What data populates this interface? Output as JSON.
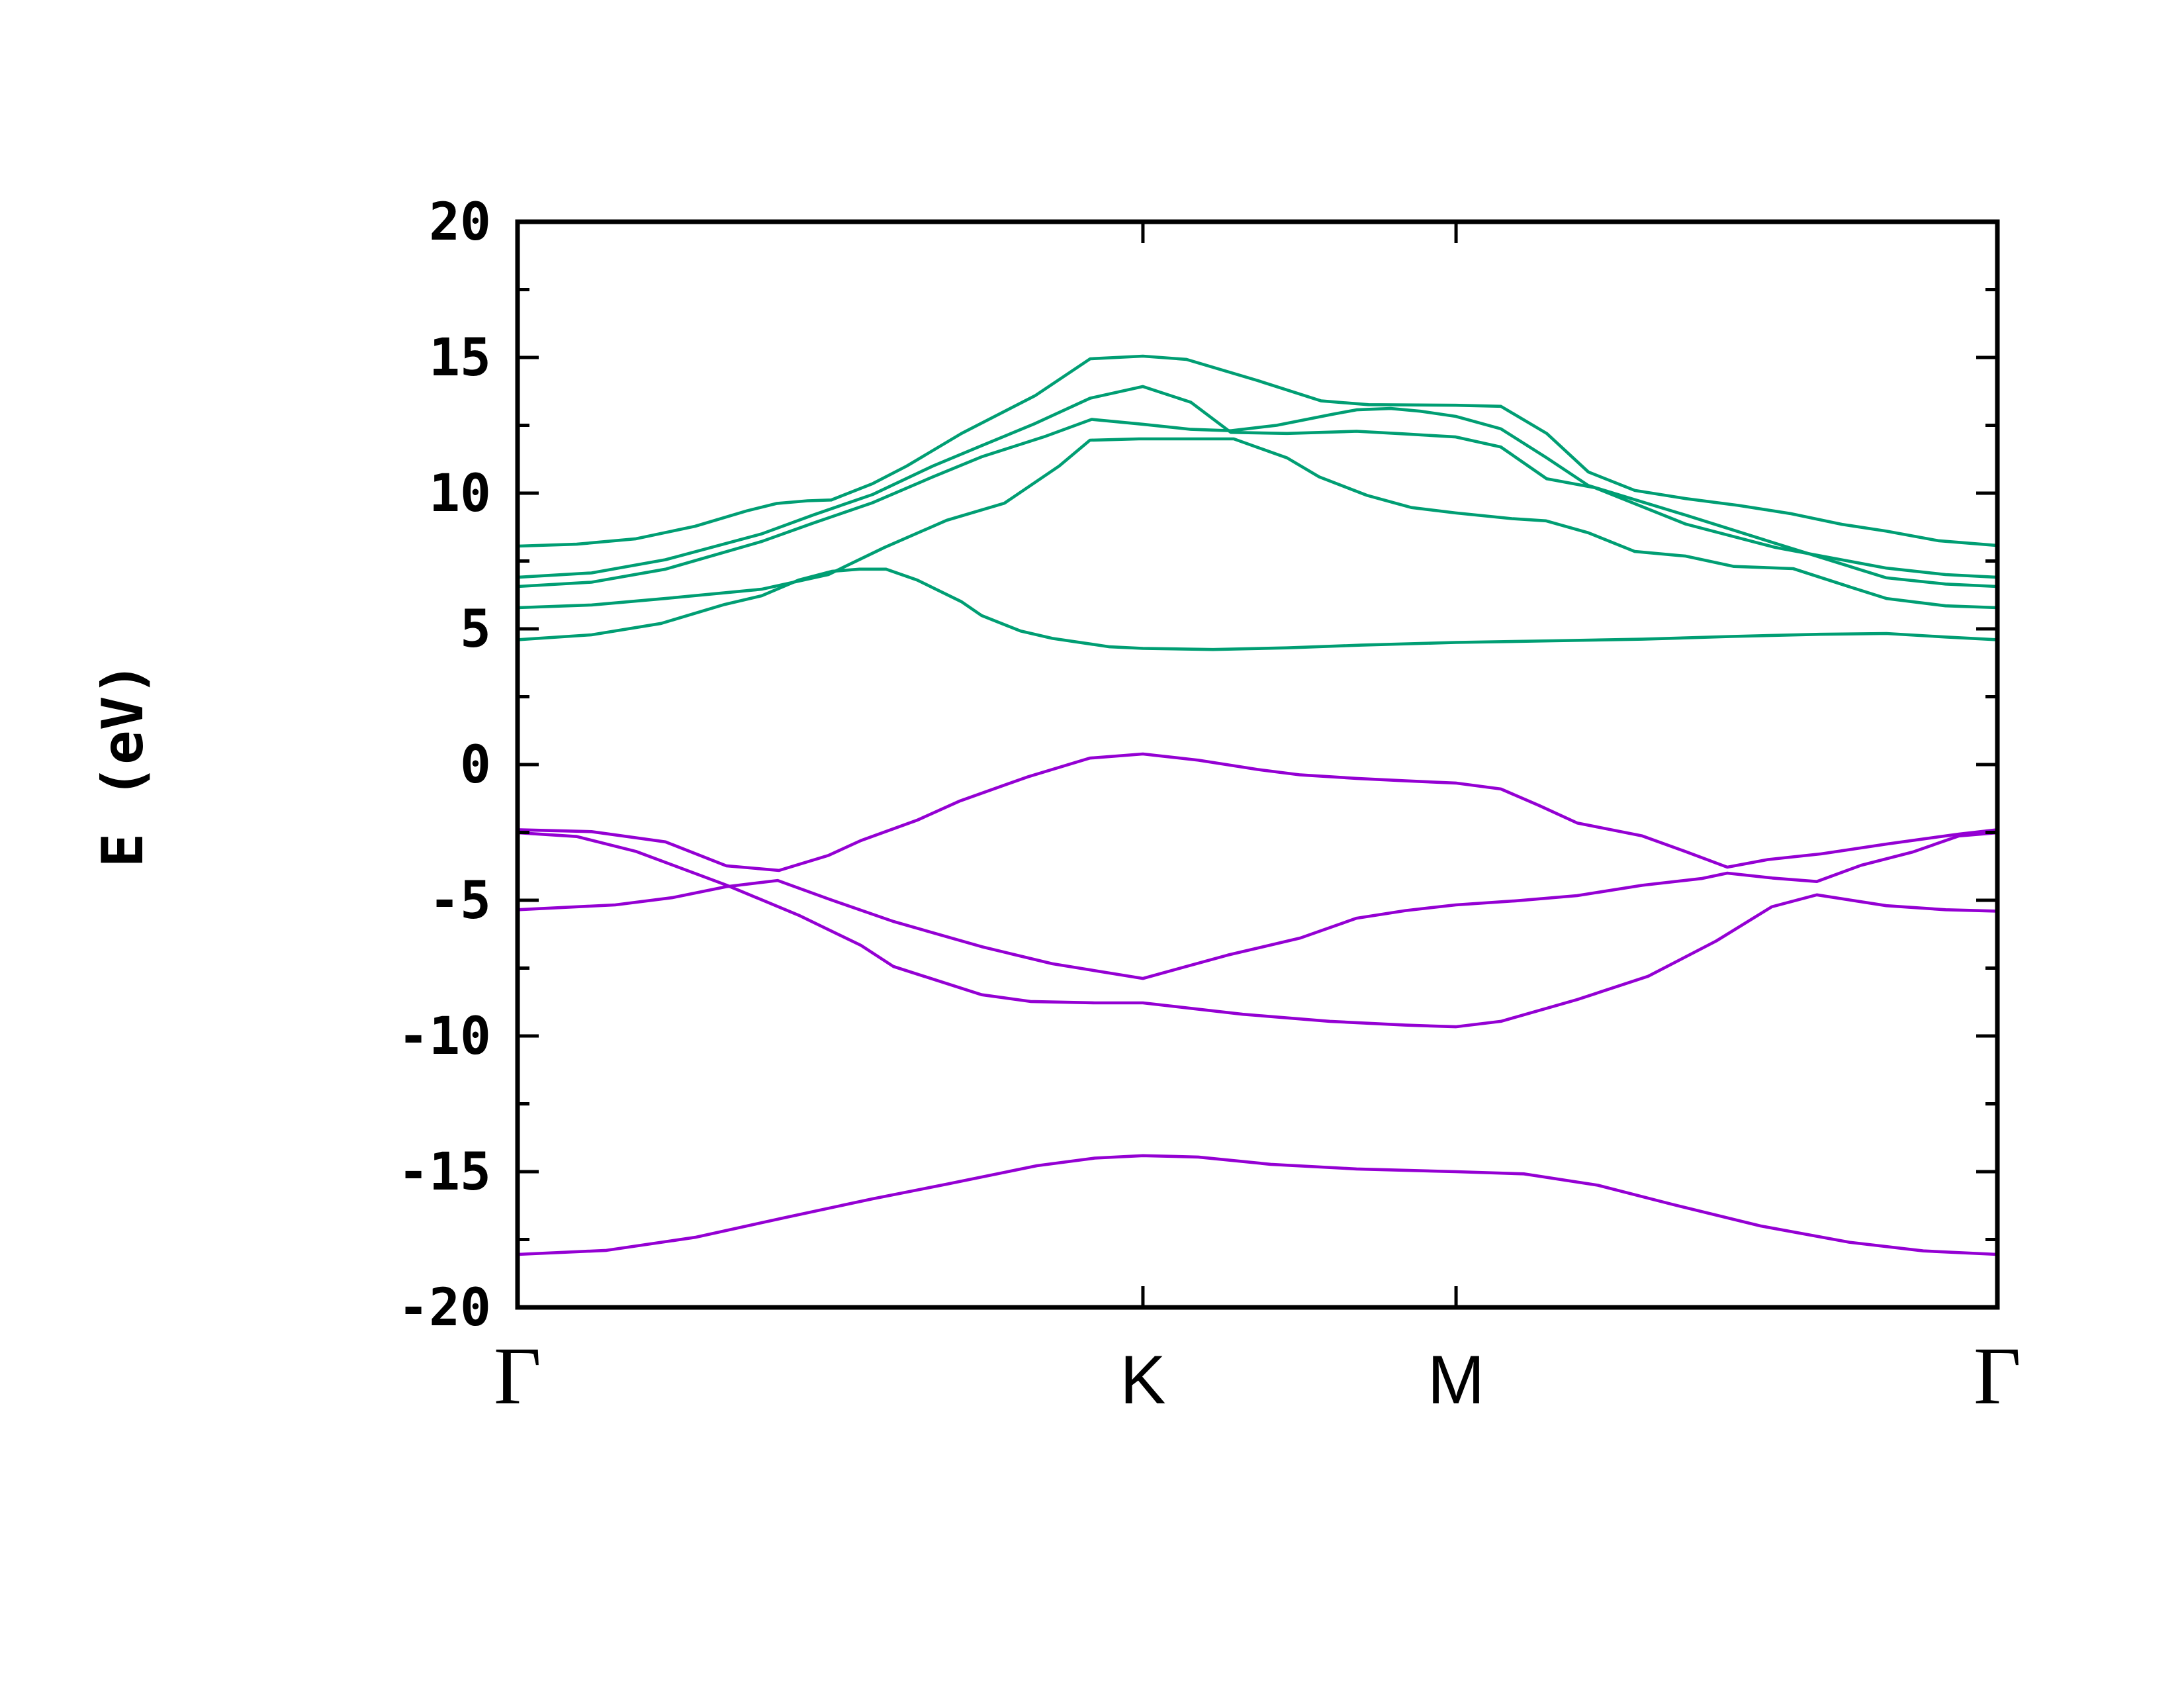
{
  "figure": {
    "background": "#ffffff"
  },
  "chart_data": {
    "type": "line",
    "title": "",
    "xlabel": "",
    "ylabel": "E (eV)",
    "ylim": [
      -20,
      20
    ],
    "grid": false,
    "legend": null,
    "y_major_ticks": [
      {
        "label": "20",
        "value": 20
      },
      {
        "label": "15",
        "value": 15
      },
      {
        "label": "10",
        "value": 10
      },
      {
        "label": "5",
        "value": 5
      },
      {
        "label": "0",
        "value": 0
      },
      {
        "label": "-5",
        "value": -5
      },
      {
        "label": "-10",
        "value": -10
      },
      {
        "label": "-15",
        "value": -15
      },
      {
        "label": "-20",
        "value": -20
      }
    ],
    "y_minor_step": 2.5,
    "x_ticks": [
      {
        "label": "Γ",
        "t": 0,
        "serif": true
      },
      {
        "label": "K",
        "t": 0.4226,
        "serif": false
      },
      {
        "label": "M",
        "t": 0.6342,
        "serif": false
      },
      {
        "label": "Γ",
        "t": 1,
        "serif": true
      }
    ],
    "colors": {
      "conduction": "#009E73",
      "valence": "#9400D3",
      "axis": "#000000"
    },
    "series": [
      {
        "name": "conduction-band-1",
        "color_key": "conduction",
        "points": [
          [
            0,
            8.05
          ],
          [
            0.04,
            8.12
          ],
          [
            0.08,
            8.32
          ],
          [
            0.12,
            8.78
          ],
          [
            0.155,
            9.35
          ],
          [
            0.175,
            9.62
          ],
          [
            0.196,
            9.72
          ],
          [
            0.212,
            9.75
          ],
          [
            0.24,
            10.35
          ],
          [
            0.263,
            11.0
          ],
          [
            0.3,
            12.2
          ],
          [
            0.35,
            13.6
          ],
          [
            0.387,
            14.95
          ],
          [
            0.4226,
            15.05
          ],
          [
            0.452,
            14.93
          ],
          [
            0.5,
            14.15
          ],
          [
            0.543,
            13.4
          ],
          [
            0.575,
            13.26
          ],
          [
            0.634,
            13.24
          ],
          [
            0.6645,
            13.2
          ],
          [
            0.6955,
            12.2
          ],
          [
            0.7236,
            10.78
          ],
          [
            0.755,
            10.1
          ],
          [
            0.7894,
            9.8
          ],
          [
            0.825,
            9.55
          ],
          [
            0.86,
            9.25
          ],
          [
            0.895,
            8.85
          ],
          [
            0.925,
            8.6
          ],
          [
            0.96,
            8.25
          ],
          [
            1,
            8.07
          ]
        ]
      },
      {
        "name": "conduction-band-2",
        "color_key": "conduction",
        "points": [
          [
            0,
            6.9
          ],
          [
            0.05,
            7.06
          ],
          [
            0.1,
            7.55
          ],
          [
            0.165,
            8.5
          ],
          [
            0.2,
            9.2
          ],
          [
            0.24,
            9.95
          ],
          [
            0.2807,
            11.0
          ],
          [
            0.3136,
            11.75
          ],
          [
            0.349,
            12.55
          ],
          [
            0.387,
            13.5
          ],
          [
            0.4226,
            13.93
          ],
          [
            0.455,
            13.35
          ],
          [
            0.482,
            12.24
          ],
          [
            0.52,
            12.2
          ],
          [
            0.567,
            12.28
          ],
          [
            0.6,
            12.18
          ],
          [
            0.634,
            12.07
          ],
          [
            0.6645,
            11.7
          ],
          [
            0.6955,
            10.53
          ],
          [
            0.728,
            10.2
          ],
          [
            0.7894,
            8.86
          ],
          [
            0.85,
            8.0
          ],
          [
            0.925,
            7.24
          ],
          [
            0.965,
            7.0
          ],
          [
            1,
            6.9
          ]
        ]
      },
      {
        "name": "conduction-band-3",
        "color_key": "conduction",
        "points": [
          [
            0,
            6.56
          ],
          [
            0.05,
            6.72
          ],
          [
            0.1,
            7.2
          ],
          [
            0.165,
            8.22
          ],
          [
            0.2,
            8.9
          ],
          [
            0.24,
            9.65
          ],
          [
            0.2807,
            10.6
          ],
          [
            0.3136,
            11.34
          ],
          [
            0.357,
            12.1
          ],
          [
            0.388,
            12.72
          ],
          [
            0.4226,
            12.54
          ],
          [
            0.455,
            12.35
          ],
          [
            0.482,
            12.3
          ],
          [
            0.513,
            12.5
          ],
          [
            0.55,
            12.9
          ],
          [
            0.567,
            13.07
          ],
          [
            0.59,
            13.12
          ],
          [
            0.61,
            13.02
          ],
          [
            0.634,
            12.83
          ],
          [
            0.6645,
            12.37
          ],
          [
            0.6955,
            11.3
          ],
          [
            0.7236,
            10.28
          ],
          [
            0.7894,
            9.19
          ],
          [
            0.85,
            8.15
          ],
          [
            0.925,
            6.88
          ],
          [
            0.965,
            6.65
          ],
          [
            1,
            6.56
          ]
        ]
      },
      {
        "name": "conduction-band-4",
        "color_key": "conduction",
        "points": [
          [
            0,
            5.78
          ],
          [
            0.05,
            5.88
          ],
          [
            0.1,
            6.12
          ],
          [
            0.165,
            6.46
          ],
          [
            0.21,
            7.0
          ],
          [
            0.248,
            8.0
          ],
          [
            0.29,
            9.0
          ],
          [
            0.329,
            9.63
          ],
          [
            0.366,
            11.0
          ],
          [
            0.3868,
            11.95
          ],
          [
            0.42,
            12.0
          ],
          [
            0.484,
            12.0
          ],
          [
            0.52,
            11.3
          ],
          [
            0.5417,
            10.6
          ],
          [
            0.574,
            9.92
          ],
          [
            0.604,
            9.47
          ],
          [
            0.634,
            9.27
          ],
          [
            0.672,
            9.06
          ],
          [
            0.695,
            8.98
          ],
          [
            0.7236,
            8.54
          ],
          [
            0.755,
            7.85
          ],
          [
            0.7894,
            7.68
          ],
          [
            0.822,
            7.3
          ],
          [
            0.862,
            7.22
          ],
          [
            0.9,
            6.55
          ],
          [
            0.925,
            6.12
          ],
          [
            0.965,
            5.85
          ],
          [
            1,
            5.78
          ]
        ]
      },
      {
        "name": "conduction-band-5",
        "color_key": "conduction",
        "points": [
          [
            0,
            4.6
          ],
          [
            0.05,
            4.78
          ],
          [
            0.097,
            5.2
          ],
          [
            0.14,
            5.9
          ],
          [
            0.165,
            6.22
          ],
          [
            0.19,
            6.8
          ],
          [
            0.2124,
            7.12
          ],
          [
            0.231,
            7.2
          ],
          [
            0.249,
            7.2
          ],
          [
            0.27,
            6.8
          ],
          [
            0.3,
            6.0
          ],
          [
            0.3136,
            5.49
          ],
          [
            0.34,
            4.92
          ],
          [
            0.3614,
            4.65
          ],
          [
            0.4,
            4.34
          ],
          [
            0.4226,
            4.28
          ],
          [
            0.47,
            4.24
          ],
          [
            0.52,
            4.3
          ],
          [
            0.57,
            4.4
          ],
          [
            0.634,
            4.5
          ],
          [
            0.7,
            4.56
          ],
          [
            0.76,
            4.62
          ],
          [
            0.82,
            4.72
          ],
          [
            0.88,
            4.8
          ],
          [
            0.925,
            4.83
          ],
          [
            0.965,
            4.7
          ],
          [
            1,
            4.6
          ]
        ]
      },
      {
        "name": "valence-band-1",
        "color_key": "valence",
        "points": [
          [
            0,
            -2.4
          ],
          [
            0.05,
            -2.47
          ],
          [
            0.1,
            -2.85
          ],
          [
            0.141,
            -3.73
          ],
          [
            0.1767,
            -3.9
          ],
          [
            0.21,
            -3.35
          ],
          [
            0.232,
            -2.8
          ],
          [
            0.27,
            -2.05
          ],
          [
            0.299,
            -1.34
          ],
          [
            0.345,
            -0.45
          ],
          [
            0.3868,
            0.24
          ],
          [
            0.4226,
            0.39
          ],
          [
            0.46,
            0.16
          ],
          [
            0.5,
            -0.18
          ],
          [
            0.529,
            -0.38
          ],
          [
            0.567,
            -0.51
          ],
          [
            0.6,
            -0.6
          ],
          [
            0.634,
            -0.68
          ],
          [
            0.6645,
            -0.9
          ],
          [
            0.69,
            -1.5
          ],
          [
            0.716,
            -2.15
          ],
          [
            0.76,
            -2.63
          ],
          [
            0.789,
            -3.2
          ],
          [
            0.8175,
            -3.78
          ],
          [
            0.845,
            -3.5
          ],
          [
            0.881,
            -3.29
          ],
          [
            0.925,
            -2.93
          ],
          [
            0.974,
            -2.56
          ],
          [
            1,
            -2.4
          ]
        ]
      },
      {
        "name": "valence-band-2",
        "color_key": "valence",
        "points": [
          [
            0,
            -2.51
          ],
          [
            0.04,
            -2.65
          ],
          [
            0.08,
            -3.2
          ],
          [
            0.141,
            -4.44
          ],
          [
            0.19,
            -5.55
          ],
          [
            0.232,
            -6.66
          ],
          [
            0.254,
            -7.44
          ],
          [
            0.3136,
            -8.48
          ],
          [
            0.3466,
            -8.73
          ],
          [
            0.39,
            -8.78
          ],
          [
            0.4226,
            -8.78
          ],
          [
            0.49,
            -9.2
          ],
          [
            0.549,
            -9.46
          ],
          [
            0.6,
            -9.6
          ],
          [
            0.634,
            -9.66
          ],
          [
            0.6645,
            -9.46
          ],
          [
            0.716,
            -8.66
          ],
          [
            0.764,
            -7.8
          ],
          [
            0.81,
            -6.5
          ],
          [
            0.8476,
            -5.24
          ],
          [
            0.878,
            -4.8
          ],
          [
            0.925,
            -5.2
          ],
          [
            0.965,
            -5.35
          ],
          [
            1,
            -5.4
          ]
        ]
      },
      {
        "name": "valence-band-3",
        "color_key": "valence",
        "points": [
          [
            0,
            -5.35
          ],
          [
            0.066,
            -5.17
          ],
          [
            0.105,
            -4.9
          ],
          [
            0.141,
            -4.5
          ],
          [
            0.1758,
            -4.27
          ],
          [
            0.21,
            -4.95
          ],
          [
            0.254,
            -5.78
          ],
          [
            0.3136,
            -6.71
          ],
          [
            0.3614,
            -7.34
          ],
          [
            0.4226,
            -7.88
          ],
          [
            0.48,
            -7.02
          ],
          [
            0.529,
            -6.39
          ],
          [
            0.567,
            -5.66
          ],
          [
            0.6,
            -5.38
          ],
          [
            0.634,
            -5.17
          ],
          [
            0.675,
            -5.02
          ],
          [
            0.716,
            -4.83
          ],
          [
            0.76,
            -4.45
          ],
          [
            0.8,
            -4.2
          ],
          [
            0.8175,
            -4.0
          ],
          [
            0.848,
            -4.18
          ],
          [
            0.878,
            -4.31
          ],
          [
            0.908,
            -3.71
          ],
          [
            0.943,
            -3.22
          ],
          [
            0.974,
            -2.63
          ],
          [
            1,
            -2.51
          ]
        ]
      },
      {
        "name": "valence-band-4",
        "color_key": "valence",
        "points": [
          [
            0,
            -18.05
          ],
          [
            0.06,
            -17.9
          ],
          [
            0.12,
            -17.42
          ],
          [
            0.18,
            -16.7
          ],
          [
            0.24,
            -16.0
          ],
          [
            0.29,
            -15.46
          ],
          [
            0.351,
            -14.78
          ],
          [
            0.39,
            -14.5
          ],
          [
            0.4226,
            -14.41
          ],
          [
            0.46,
            -14.46
          ],
          [
            0.509,
            -14.73
          ],
          [
            0.567,
            -14.9
          ],
          [
            0.634,
            -15.0
          ],
          [
            0.68,
            -15.08
          ],
          [
            0.73,
            -15.5
          ],
          [
            0.78,
            -16.2
          ],
          [
            0.84,
            -17.0
          ],
          [
            0.9,
            -17.6
          ],
          [
            0.95,
            -17.92
          ],
          [
            1,
            -18.05
          ]
        ]
      }
    ],
    "layout_hints": {
      "legend_position": "none",
      "axis_mirror_ticks": true
    }
  }
}
